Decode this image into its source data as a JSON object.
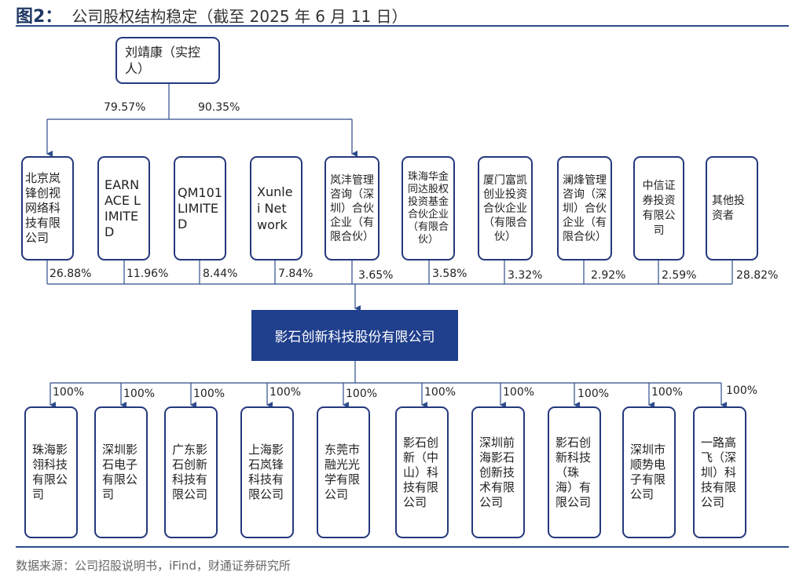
{
  "header": {
    "figure_no": "图2：",
    "title": "公司股权结构稳定（截至 2025 年 6 月 11 日）"
  },
  "controller": {
    "name": "刘靖康（实控人）",
    "pct_direct": "79.57%",
    "pct_indirect": "90.35%"
  },
  "shareholders": [
    {
      "name": "北京岚锋创视网络科技有限公司",
      "pct": "26.88%"
    },
    {
      "name": "EARNACE LIMITED",
      "pct": "11.96%"
    },
    {
      "name": "QM101 LIMITED",
      "pct": "8.44%"
    },
    {
      "name": "Xunlei Network",
      "pct": "7.84%"
    },
    {
      "name": "岚沣管理咨询（深圳）合伙企业（有限合伙）",
      "pct": "3.65%"
    },
    {
      "name": "珠海华金同达股权投资基金合伙企业（有限合伙）",
      "pct": "3.58%"
    },
    {
      "name": "厦门富凯创业投资合伙企业（有限合伙）",
      "pct": "3.32%"
    },
    {
      "name": "澜烽管理咨询（深圳）合伙企业（有限合伙）",
      "pct": "2.92%"
    },
    {
      "name": "中信证券投资有限公司",
      "pct": "2.59%"
    },
    {
      "name": "其他投资者",
      "pct": "28.82%"
    }
  ],
  "company": {
    "name": "影石创新科技股份有限公司"
  },
  "subsidiaries": [
    {
      "name": "珠海影翎科技有限公司",
      "pct": "100%"
    },
    {
      "name": "深圳影石电子有限公司",
      "pct": "100%"
    },
    {
      "name": "广东影石创新科技有限公司",
      "pct": "100%"
    },
    {
      "name": "上海影石岚锋科技有限公司",
      "pct": "100%"
    },
    {
      "name": "东莞市融光光学有限公司",
      "pct": "100%"
    },
    {
      "name": "影石创新（中山）科技有限公司",
      "pct": "100%"
    },
    {
      "name": "深圳前海影石创新技术有限公司",
      "pct": "100%"
    },
    {
      "name": "影石创新科技（珠海）有限公司",
      "pct": "100%"
    },
    {
      "name": "深圳市顺势电子有限公司",
      "pct": "100%"
    },
    {
      "name": "一路高飞（深圳）科技有限公司",
      "pct": "100%"
    }
  ],
  "footer": {
    "source": "数据来源：公司招股说明书，iFind，财通证券研究所"
  },
  "colors": {
    "accent": "#203f8c",
    "border": "#24387c",
    "line": "#2e4c8c"
  }
}
